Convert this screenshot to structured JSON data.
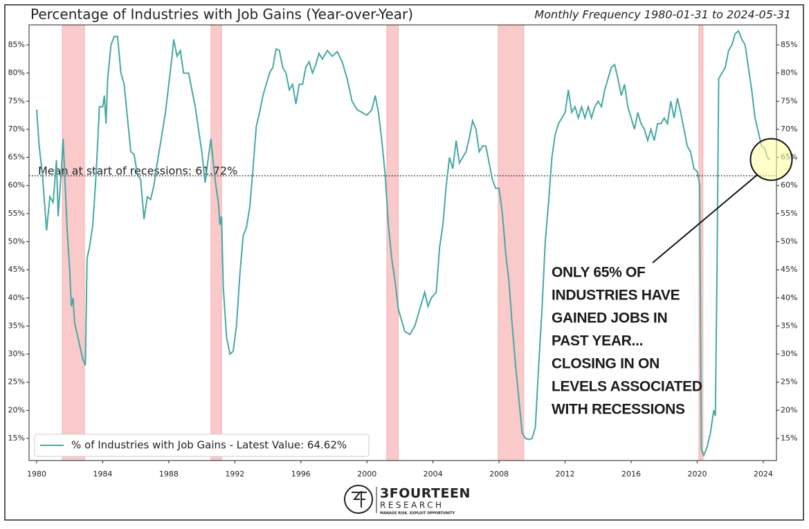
{
  "chart_data": {
    "type": "line",
    "title": "Percentage of Industries with Job Gains (Year-over-Year)",
    "subtitle": "Monthly Frequency 1980-01-31 to 2024-05-31",
    "x": [
      1980.0,
      1980.15,
      1980.35,
      1980.6,
      1980.8,
      1981.0,
      1981.2,
      1981.3,
      1981.5,
      1981.6,
      1981.7,
      1981.85,
      1982.0,
      1982.1,
      1982.2,
      1982.3,
      1982.5,
      1982.8,
      1982.95,
      1983.05,
      1983.2,
      1983.4,
      1983.6,
      1983.8,
      1984.0,
      1984.1,
      1984.2,
      1984.3,
      1984.5,
      1984.7,
      1984.9,
      1985.1,
      1985.3,
      1985.5,
      1985.7,
      1985.9,
      1986.1,
      1986.3,
      1986.5,
      1986.7,
      1986.9,
      1987.1,
      1987.3,
      1987.5,
      1987.8,
      1988.0,
      1988.2,
      1988.3,
      1988.5,
      1988.7,
      1988.9,
      1989.2,
      1989.4,
      1989.6,
      1989.8,
      1990.0,
      1990.2,
      1990.4,
      1990.55,
      1990.7,
      1990.85,
      1991.0,
      1991.1,
      1991.2,
      1991.3,
      1991.5,
      1991.7,
      1991.9,
      1992.1,
      1992.3,
      1992.5,
      1992.7,
      1992.9,
      1993.1,
      1993.3,
      1993.5,
      1993.7,
      1993.9,
      1994.1,
      1994.3,
      1994.5,
      1994.7,
      1994.9,
      1995.1,
      1995.3,
      1995.5,
      1995.7,
      1995.9,
      1996.1,
      1996.3,
      1996.5,
      1996.7,
      1996.9,
      1997.1,
      1997.3,
      1997.6,
      1997.9,
      1998.2,
      1998.5,
      1998.8,
      1999.1,
      1999.4,
      1999.7,
      2000.0,
      2000.3,
      2000.5,
      2000.7,
      2000.9,
      2001.1,
      2001.3,
      2001.5,
      2001.7,
      2001.9,
      2002.1,
      2002.3,
      2002.6,
      2002.9,
      2003.1,
      2003.3,
      2003.5,
      2003.7,
      2003.9,
      2004.2,
      2004.4,
      2004.6,
      2004.8,
      2005.0,
      2005.2,
      2005.4,
      2005.6,
      2005.8,
      2006.0,
      2006.2,
      2006.4,
      2006.6,
      2006.8,
      2007.0,
      2007.2,
      2007.4,
      2007.6,
      2007.8,
      2008.0,
      2008.2,
      2008.4,
      2008.6,
      2008.8,
      2009.0,
      2009.2,
      2009.4,
      2009.6,
      2009.8,
      2010.0,
      2010.2,
      2010.4,
      2010.6,
      2010.8,
      2011.0,
      2011.2,
      2011.4,
      2011.6,
      2011.8,
      2012.0,
      2012.2,
      2012.4,
      2012.6,
      2012.8,
      2013.0,
      2013.2,
      2013.4,
      2013.6,
      2013.8,
      2014.0,
      2014.2,
      2014.4,
      2014.6,
      2014.8,
      2015.0,
      2015.2,
      2015.4,
      2015.6,
      2015.8,
      2016.0,
      2016.2,
      2016.4,
      2016.6,
      2016.8,
      2017.0,
      2017.2,
      2017.4,
      2017.6,
      2017.8,
      2018.0,
      2018.2,
      2018.4,
      2018.6,
      2018.8,
      2019.0,
      2019.2,
      2019.4,
      2019.6,
      2019.8,
      2020.0,
      2020.15,
      2020.25,
      2020.4,
      2020.6,
      2020.8,
      2021.0,
      2021.1,
      2021.2,
      2021.3,
      2021.5,
      2021.7,
      2021.9,
      2022.1,
      2022.3,
      2022.5,
      2022.7,
      2022.9,
      2023.1,
      2023.3,
      2023.5,
      2023.7,
      2023.9,
      2024.1,
      2024.25,
      2024.4
    ],
    "series": [
      {
        "name": "% of Industries with Job Gains - Latest Value: 64.62%",
        "color": "#45a8a2",
        "values": [
          73.5,
          67,
          62,
          52,
          58,
          57,
          64.5,
          54.5,
          63,
          68.3,
          62,
          52,
          45,
          38.5,
          40,
          35.5,
          33,
          29,
          28,
          47,
          49,
          53,
          62,
          74,
          74,
          76,
          71,
          79,
          85,
          86.5,
          86.5,
          80,
          78,
          72,
          66,
          65.5,
          62,
          61,
          54,
          58,
          57.5,
          60,
          64,
          67.5,
          73,
          78,
          83,
          86,
          83,
          84,
          80,
          80,
          77,
          74,
          70,
          66,
          60.5,
          65,
          68.3,
          64,
          60,
          57,
          53,
          54.5,
          42,
          33,
          30,
          30.5,
          35,
          44,
          51,
          52.5,
          56,
          63,
          70.5,
          73,
          76,
          78,
          80,
          81,
          84.3,
          84,
          81,
          80,
          77,
          78,
          74.5,
          78,
          78,
          81,
          82,
          80,
          81.5,
          83.5,
          82.5,
          84,
          83,
          83.8,
          82,
          79,
          75,
          73.5,
          73,
          72.5,
          73.5,
          76,
          73,
          68,
          62,
          53,
          47,
          43,
          38,
          36,
          34,
          33.5,
          35,
          37,
          39,
          41,
          38.5,
          40,
          41,
          49,
          53,
          60,
          65,
          63,
          68,
          64,
          65,
          66,
          68.5,
          71.5,
          70,
          66,
          67,
          67,
          64,
          61,
          59.5,
          59.5,
          55,
          48,
          43,
          35,
          28,
          22,
          16,
          15,
          14.8,
          15,
          17,
          28,
          38,
          50,
          57,
          65,
          69,
          71,
          72,
          73,
          77,
          73,
          74,
          72,
          74,
          72,
          74,
          72,
          74,
          75,
          74,
          77,
          79,
          81,
          81.5,
          79,
          76,
          78,
          74,
          72,
          70,
          73,
          71,
          70,
          68,
          70,
          68,
          71,
          71,
          72,
          71,
          75,
          72,
          75.5,
          73,
          70,
          67,
          66,
          63,
          62.5,
          60,
          13,
          12,
          13.5,
          16,
          20,
          19,
          45,
          79,
          80,
          81,
          84,
          85,
          87,
          87.5,
          86,
          85,
          81,
          77,
          72,
          69.5,
          67,
          66.5,
          65,
          64.62
        ]
      }
    ],
    "recessions": [
      [
        1981.55,
        1982.9
      ],
      [
        1990.55,
        1991.2
      ],
      [
        2001.2,
        2001.9
      ],
      [
        2007.95,
        2009.5
      ],
      [
        2020.1,
        2020.35
      ]
    ],
    "recession_color": "#f8b4b4",
    "mean_line": {
      "value": 61.72,
      "label": "Mean at start of recessions: 61.72%"
    },
    "xlim": [
      1979.54,
      2024.8
    ],
    "xticks": [
      1980,
      1984,
      1988,
      1992,
      1996,
      2000,
      2004,
      2008,
      2012,
      2016,
      2020,
      2024
    ],
    "ylim": [
      11.06,
      88.57
    ],
    "yticks": [
      {
        "value": 15,
        "label": "15%"
      },
      {
        "value": 20,
        "label": "20%"
      },
      {
        "value": 25,
        "label": "25%"
      },
      {
        "value": 30,
        "label": "30%"
      },
      {
        "value": 35,
        "label": "35%"
      },
      {
        "value": 40,
        "label": "40%"
      },
      {
        "value": 45,
        "label": "45%"
      },
      {
        "value": 50,
        "label": "50%"
      },
      {
        "value": 55,
        "label": "55%"
      },
      {
        "value": 60,
        "label": "60%"
      },
      {
        "value": 65,
        "label": "65%"
      },
      {
        "value": 70,
        "label": "70%"
      },
      {
        "value": 75,
        "label": "75%"
      },
      {
        "value": 80,
        "label": "80%"
      },
      {
        "value": 85,
        "label": "85%"
      }
    ],
    "grid": false,
    "legend": "lower left",
    "annotation": [
      "ONLY 65% OF",
      "INDUSTRIES HAVE",
      "GAINED JOBS IN",
      "PAST YEAR...",
      "CLOSING IN ON",
      "LEVELS ASSOCIATED",
      "WITH RECESSIONS"
    ],
    "logo": {
      "name": "3FOURTEEN",
      "sub": "RESEARCH",
      "tagline": "MANAGE RISK. EXPLOIT OPPORTUNITY"
    }
  }
}
